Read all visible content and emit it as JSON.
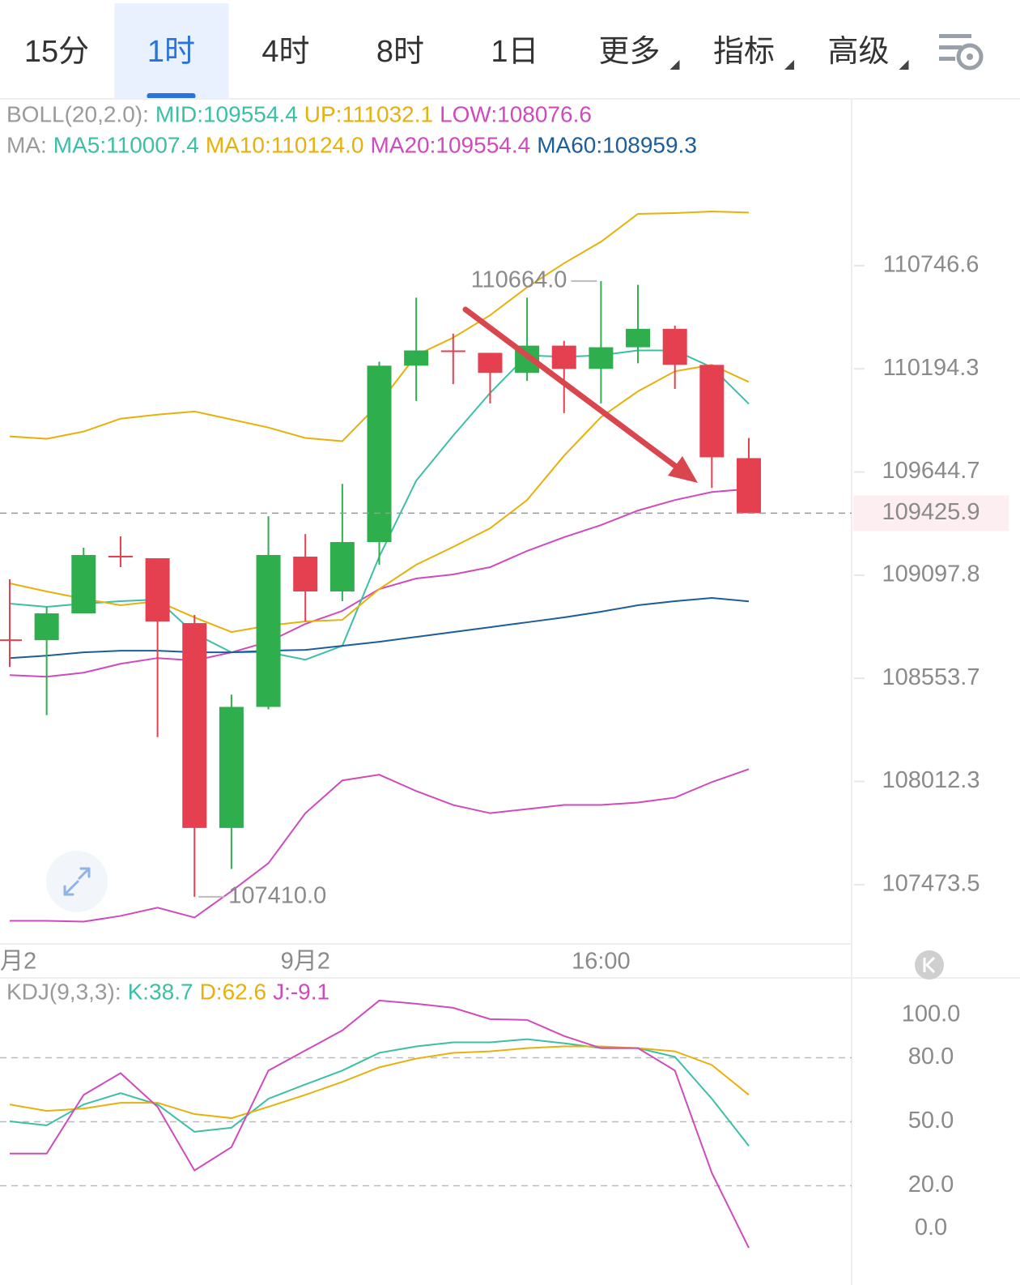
{
  "tabs": [
    {
      "label": "15分"
    },
    {
      "label": "1时"
    },
    {
      "label": "4时"
    },
    {
      "label": "8时"
    },
    {
      "label": "1日"
    },
    {
      "label": "更多",
      "dropdown": true
    },
    {
      "label": "指标",
      "dropdown": true
    },
    {
      "label": "高级",
      "dropdown": true
    }
  ],
  "active_tab": 1,
  "chart_data": [
    {
      "type": "candlestick",
      "log_scale": true,
      "up_color": "#2fae4e",
      "down_color": "#e5404f",
      "legend": [
        [
          {
            "text": "BOLL(20,2.0):",
            "color": "#9a9a9a"
          },
          {
            "text": "MID:109554.4",
            "color": "#3dbfa5"
          },
          {
            "text": "UP:111032.1",
            "color": "#e8b00c"
          },
          {
            "text": "LOW:108076.6",
            "color": "#cf4bbd"
          }
        ],
        [
          {
            "text": "MA:",
            "color": "#9a9a9a"
          },
          {
            "text": "MA5:110007.4",
            "color": "#3dbfa5"
          },
          {
            "text": "MA10:110124.0",
            "color": "#e8b00c"
          },
          {
            "text": "MA20:109554.4",
            "color": "#cf4bbd"
          },
          {
            "text": "MA60:108959.3",
            "color": "#1d5d99"
          }
        ]
      ],
      "categories": [
        "月2",
        null,
        null,
        null,
        null,
        null,
        null,
        null,
        "9月2",
        null,
        null,
        null,
        null,
        null,
        null,
        null,
        "16:00",
        null,
        null,
        null,
        null
      ],
      "open": [
        108754.5,
        108754.5,
        108895.9,
        109195.8,
        109187.2,
        108844.5,
        107769.2,
        108403.3,
        109195.8,
        109011.6,
        109272.9,
        110211.1,
        110288.2,
        110279.6,
        110172.5,
        110318.2,
        110194.0,
        110309.6,
        110408.2,
        110215.4,
        109718.4
      ],
      "high": [
        109075.8,
        108930.2,
        109242.9,
        109302.9,
        109187.2,
        108887.3,
        108467.5,
        109410.0,
        109315.7,
        109581.4,
        110232.5,
        110575.2,
        110382.5,
        110279.6,
        110575.2,
        110343.9,
        110664.0,
        110643.8,
        110425.3,
        110215.4,
        109825.5
      ],
      "low": [
        108613.2,
        108360.4,
        108895.9,
        109140.1,
        108244.7,
        107410.0,
        107555.0,
        108390.4,
        108853.1,
        108960.2,
        109153.0,
        110022.6,
        110112.6,
        110009.8,
        110129.7,
        109958.3,
        110009.8,
        110224.0,
        110086.9,
        109559.9,
        109425.9
      ],
      "close": [
        108754.5,
        108895.9,
        109204.4,
        109195.8,
        108853.1,
        107769.2,
        108403.3,
        109204.4,
        109011.6,
        109272.9,
        110211.1,
        110292.5,
        110288.2,
        110172.5,
        110318.2,
        110194.0,
        110309.6,
        110408.2,
        110215.4,
        109722.7,
        109425.9
      ],
      "series": [
        {
          "color": "#e8b00c",
          "values": [
            109834.1,
            109821.3,
            109859.8,
            109928.4,
            109949.8,
            109966.9,
            109924.1,
            109881.2,
            109825.5,
            109808.4,
            110009.8,
            110266.8,
            110361.0,
            110481.0,
            110630.9,
            110759.5,
            110875.1,
            111025.1,
            111029.3,
            111037.9,
            111032.1
          ]
        },
        {
          "color": "#cf4bbd",
          "values": [
            107285.1,
            107285.1,
            107280.8,
            107310.8,
            107353.7,
            107302.3,
            107439.4,
            107585.0,
            107846.3,
            108017.7,
            108047.7,
            107962.0,
            107889.2,
            107846.3,
            107867.8,
            107889.2,
            107889.2,
            107902.0,
            107927.7,
            108009.1,
            108076.6
          ]
        },
        {
          "color": "#cf4bbd",
          "values": [
            108570.3,
            108561.8,
            108583.2,
            108630.3,
            108660.3,
            108647.4,
            108690.3,
            108746.0,
            108840.2,
            108908.8,
            109024.4,
            109080.1,
            109101.5,
            109140.1,
            109225.8,
            109298.6,
            109362.9,
            109440.0,
            109495.7,
            109538.5,
            109554.4
          ]
        },
        {
          "color": "#3dbfa5",
          "values": [
            108947.3,
            108930.2,
            108947.3,
            108960.2,
            108968.7,
            108788.8,
            108690.3,
            108690.3,
            108651.7,
            108724.6,
            109195.8,
            109598.5,
            109838.4,
            110065.4,
            110266.8,
            110258.2,
            110266.8,
            110292.5,
            110292.5,
            110202.5,
            110007.4
          ]
        },
        {
          "color": "#e8b00c",
          "values": [
            109054.4,
            109011.6,
            108973.0,
            108938.8,
            108960.2,
            108874.5,
            108797.4,
            108831.6,
            108853.1,
            108861.6,
            109024.4,
            109153.0,
            109247.2,
            109345.7,
            109495.7,
            109731.3,
            109936.9,
            110074.0,
            110181.1,
            110215.4,
            110124.0
          ]
        },
        {
          "color": "#1d5d99",
          "values": [
            108660.3,
            108673.1,
            108690.3,
            108698.8,
            108698.8,
            108690.3,
            108690.3,
            108698.8,
            108703.1,
            108724.6,
            108746.0,
            108771.7,
            108797.4,
            108823.1,
            108848.8,
            108874.5,
            108904.5,
            108938.8,
            108960.2,
            108977.3,
            108959.3
          ]
        }
      ],
      "ylim": [
        107165.2,
        111632.6
      ],
      "yticks": [
        110746.6,
        110194.3,
        109644.7,
        109097.8,
        108553.7,
        108012.3,
        107473.5
      ],
      "current_price": 109425.9,
      "high_label": "110664.0",
      "low_label": "107410.0"
    },
    {
      "type": "line",
      "legend": [
        [
          {
            "text": "KDJ(9,3,3):",
            "color": "#9a9a9a"
          },
          {
            "text": "K:38.7",
            "color": "#3dbfa5"
          },
          {
            "text": "D:62.6",
            "color": "#e8b00c"
          },
          {
            "text": "J:-9.1",
            "color": "#cf4bbd"
          }
        ]
      ],
      "series": [
        {
          "color": "#3dbfa5",
          "values": [
            50.2,
            48.3,
            58.1,
            63.4,
            58.1,
            45.3,
            47.2,
            60.8,
            67.5,
            74.0,
            82.3,
            85.3,
            87.2,
            87.2,
            88.7,
            86.8,
            84.5,
            84.5,
            80.4,
            60.8,
            38.7
          ]
        },
        {
          "color": "#e8b00c",
          "values": [
            58.1,
            55.1,
            56.2,
            58.9,
            58.9,
            53.6,
            51.7,
            57.0,
            62.6,
            68.7,
            75.5,
            79.6,
            82.3,
            83.0,
            84.5,
            85.3,
            85.3,
            84.5,
            83.0,
            76.6,
            62.6
          ]
        },
        {
          "color": "#cf4bbd",
          "values": [
            35.1,
            35.1,
            62.6,
            72.8,
            57.0,
            27.2,
            38.1,
            74.0,
            83.4,
            92.8,
            106.8,
            105.3,
            103.4,
            98.1,
            97.7,
            90.2,
            84.5,
            84.5,
            74.0,
            26.0,
            -9.1
          ]
        }
      ],
      "ylim": [
        -18.9,
        117.4
      ],
      "yticks": [
        {
          "value": 100,
          "label": "100.0"
        },
        {
          "value": 80,
          "label": "80.0"
        },
        {
          "value": 50,
          "label": "50.0"
        },
        {
          "value": 20,
          "label": "20.0"
        },
        {
          "value": 0,
          "label": "0.0"
        }
      ]
    }
  ]
}
